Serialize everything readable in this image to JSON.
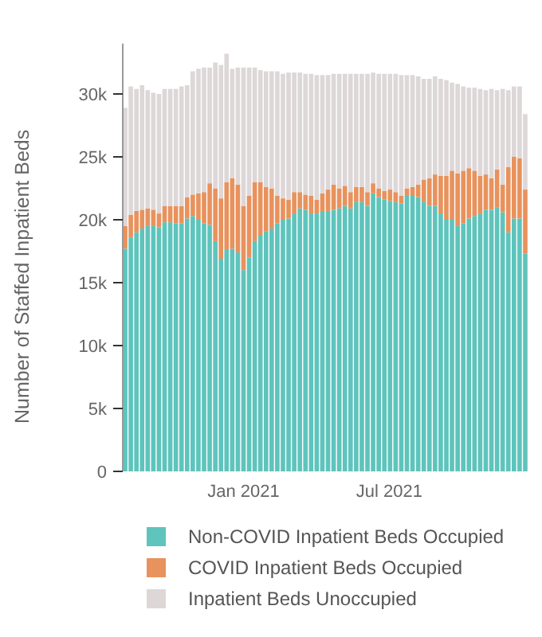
{
  "chart_data": {
    "type": "bar",
    "stacked": true,
    "ylabel": "Number of Staffed Inpatient Beds",
    "x": [
      "2020-08-07",
      "2020-08-14",
      "2020-08-21",
      "2020-08-28",
      "2020-09-04",
      "2020-09-11",
      "2020-09-18",
      "2020-09-25",
      "2020-10-02",
      "2020-10-09",
      "2020-10-16",
      "2020-10-23",
      "2020-10-30",
      "2020-11-06",
      "2020-11-13",
      "2020-11-20",
      "2020-11-27",
      "2020-12-04",
      "2020-12-11",
      "2020-12-18",
      "2020-12-25",
      "2021-01-01",
      "2021-01-08",
      "2021-01-15",
      "2021-01-22",
      "2021-01-29",
      "2021-02-05",
      "2021-02-12",
      "2021-02-19",
      "2021-02-26",
      "2021-03-05",
      "2021-03-12",
      "2021-03-19",
      "2021-03-26",
      "2021-04-02",
      "2021-04-09",
      "2021-04-16",
      "2021-04-23",
      "2021-04-30",
      "2021-05-07",
      "2021-05-14",
      "2021-05-21",
      "2021-05-28",
      "2021-06-04",
      "2021-06-11",
      "2021-06-18",
      "2021-06-25",
      "2021-07-02",
      "2021-07-09",
      "2021-07-16",
      "2021-07-23",
      "2021-07-30",
      "2021-08-06",
      "2021-08-13",
      "2021-08-20",
      "2021-08-27",
      "2021-09-03",
      "2021-09-10",
      "2021-09-17",
      "2021-09-24",
      "2021-10-01",
      "2021-10-08",
      "2021-10-15",
      "2021-10-22",
      "2021-10-29",
      "2021-11-05",
      "2021-11-12",
      "2021-11-19",
      "2021-11-26",
      "2021-12-03",
      "2021-12-10",
      "2021-12-17"
    ],
    "series": [
      {
        "name": "Non-COVID Inpatient Beds Occupied",
        "color": "#5ec4bc",
        "values": [
          17700,
          18600,
          19000,
          19300,
          19500,
          19500,
          19400,
          19800,
          19800,
          19700,
          19700,
          20100,
          20300,
          20000,
          19700,
          19600,
          18300,
          16900,
          17600,
          17700,
          17400,
          16000,
          17000,
          18300,
          18800,
          19100,
          19300,
          19700,
          20000,
          20100,
          20500,
          20900,
          20800,
          20500,
          20500,
          20700,
          20700,
          20800,
          20900,
          21100,
          20900,
          21400,
          21400,
          21100,
          22100,
          21800,
          21600,
          21500,
          21400,
          21300,
          21900,
          21900,
          21800,
          21400,
          21100,
          21100,
          20500,
          20000,
          20000,
          19500,
          19700,
          20100,
          20300,
          20500,
          20800,
          20800,
          21000,
          20600,
          19000,
          20100,
          20100,
          17300
        ]
      },
      {
        "name": "COVID Inpatient Beds Occupied",
        "color": "#e8925d",
        "values": [
          1800,
          1800,
          1700,
          1500,
          1400,
          1300,
          1100,
          1300,
          1300,
          1400,
          1400,
          1700,
          1700,
          2100,
          2500,
          3300,
          4200,
          4800,
          5400,
          5600,
          5400,
          5100,
          4900,
          4700,
          4200,
          3500,
          3200,
          2200,
          1700,
          1500,
          1700,
          1300,
          1200,
          1400,
          1100,
          1400,
          1700,
          2000,
          1600,
          1600,
          1300,
          1200,
          1200,
          1100,
          800,
          700,
          700,
          900,
          800,
          600,
          600,
          700,
          1000,
          1800,
          2200,
          2500,
          3000,
          3500,
          3900,
          4200,
          4200,
          4000,
          3600,
          3000,
          2800,
          2500,
          3000,
          2200,
          5200,
          4900,
          4800,
          5100
        ]
      },
      {
        "name": "Inpatient Beds Unoccupied",
        "color": "#ddd7d8",
        "values": [
          9400,
          10200,
          9700,
          9900,
          9400,
          9300,
          9500,
          9300,
          9300,
          9300,
          9500,
          8900,
          9800,
          9900,
          9900,
          9200,
          10000,
          10600,
          10200,
          8700,
          9300,
          11000,
          10200,
          9100,
          8900,
          9200,
          9300,
          9900,
          9900,
          10100,
          9500,
          9500,
          9600,
          9700,
          9900,
          9400,
          9100,
          8800,
          9100,
          8900,
          9400,
          9000,
          9000,
          9400,
          8800,
          9100,
          9300,
          9200,
          9400,
          9600,
          9000,
          8900,
          8600,
          8000,
          7900,
          7800,
          7700,
          7600,
          7000,
          7100,
          6700,
          6400,
          6600,
          6900,
          6700,
          7100,
          6300,
          7600,
          6100,
          5600,
          5700,
          6000
        ]
      }
    ],
    "xlim": [
      "2020-08-04",
      "2021-12-20"
    ],
    "xticks": [
      {
        "value": "2021-01-01",
        "label": "Jan 2021"
      },
      {
        "value": "2021-07-01",
        "label": "Jul 2021"
      }
    ],
    "ylim": [
      0,
      34000
    ],
    "yticks": [
      {
        "value": 0,
        "label": "0"
      },
      {
        "value": 5000,
        "label": "5k"
      },
      {
        "value": 10000,
        "label": "10k"
      },
      {
        "value": 15000,
        "label": "15k"
      },
      {
        "value": 20000,
        "label": "20k"
      },
      {
        "value": 25000,
        "label": "25k"
      },
      {
        "value": 30000,
        "label": "30k"
      }
    ],
    "legend": "bottom"
  }
}
